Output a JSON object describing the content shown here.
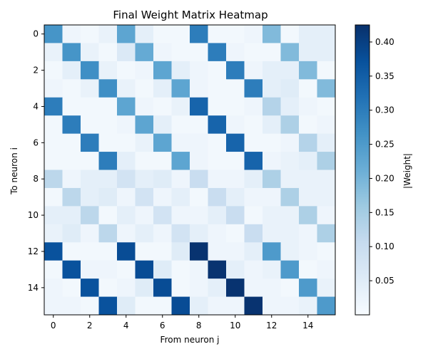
{
  "chart_data": {
    "type": "heatmap",
    "title": "Final Weight Matrix Heatmap",
    "xlabel": "From neuron j",
    "ylabel": "To neuron i",
    "colorbar_label": "|Weight|",
    "colormap": "Blues",
    "vmin": 0.0,
    "vmax": 0.425,
    "x_ticks": [
      0,
      2,
      4,
      6,
      8,
      10,
      12,
      14
    ],
    "y_ticks": [
      0,
      2,
      4,
      6,
      8,
      10,
      12,
      14
    ],
    "colorbar_ticks": [
      "0.05",
      "0.10",
      "0.15",
      "0.20",
      "0.25",
      "0.30",
      "0.35",
      "0.40"
    ],
    "colorbar_tick_values": [
      0.05,
      0.1,
      0.15,
      0.2,
      0.25,
      0.3,
      0.35,
      0.4
    ],
    "rows": 16,
    "cols": 16,
    "values": [
      [
        0.26,
        0.02,
        0.01,
        0.03,
        0.23,
        0.04,
        0.01,
        0.01,
        0.3,
        0.01,
        0.01,
        0.02,
        0.19,
        0.01,
        0.04,
        0.04
      ],
      [
        0.03,
        0.26,
        0.03,
        0.01,
        0.06,
        0.22,
        0.02,
        0.01,
        0.01,
        0.3,
        0.02,
        0.01,
        0.01,
        0.19,
        0.04,
        0.04
      ],
      [
        0.01,
        0.04,
        0.27,
        0.03,
        0.01,
        0.02,
        0.23,
        0.04,
        0.02,
        0.01,
        0.3,
        0.02,
        0.04,
        0.04,
        0.19,
        0.01
      ],
      [
        0.02,
        0.01,
        0.03,
        0.27,
        0.03,
        0.01,
        0.04,
        0.23,
        0.02,
        0.01,
        0.01,
        0.3,
        0.04,
        0.05,
        0.01,
        0.19
      ],
      [
        0.3,
        0.01,
        0.01,
        0.01,
        0.23,
        0.02,
        0.01,
        0.03,
        0.34,
        0.01,
        0.01,
        0.02,
        0.13,
        0.04,
        0.02,
        0.01
      ],
      [
        0.01,
        0.3,
        0.01,
        0.01,
        0.02,
        0.23,
        0.04,
        0.01,
        0.01,
        0.34,
        0.02,
        0.01,
        0.04,
        0.14,
        0.01,
        0.02
      ],
      [
        0.01,
        0.01,
        0.3,
        0.01,
        0.01,
        0.03,
        0.23,
        0.02,
        0.02,
        0.01,
        0.34,
        0.01,
        0.01,
        0.02,
        0.13,
        0.04
      ],
      [
        0.01,
        0.01,
        0.01,
        0.3,
        0.04,
        0.01,
        0.01,
        0.23,
        0.02,
        0.01,
        0.01,
        0.34,
        0.02,
        0.03,
        0.04,
        0.14
      ],
      [
        0.12,
        0.02,
        0.04,
        0.04,
        0.08,
        0.04,
        0.05,
        0.02,
        0.1,
        0.02,
        0.02,
        0.04,
        0.14,
        0.03,
        0.03,
        0.03
      ],
      [
        0.01,
        0.12,
        0.04,
        0.05,
        0.02,
        0.08,
        0.02,
        0.04,
        0.01,
        0.1,
        0.04,
        0.02,
        0.02,
        0.14,
        0.03,
        0.03
      ],
      [
        0.04,
        0.04,
        0.12,
        0.01,
        0.04,
        0.02,
        0.08,
        0.02,
        0.02,
        0.04,
        0.1,
        0.01,
        0.03,
        0.03,
        0.14,
        0.02
      ],
      [
        0.03,
        0.05,
        0.02,
        0.12,
        0.02,
        0.04,
        0.02,
        0.08,
        0.04,
        0.02,
        0.01,
        0.1,
        0.03,
        0.03,
        0.02,
        0.14
      ],
      [
        0.37,
        0.01,
        0.01,
        0.01,
        0.38,
        0.01,
        0.01,
        0.05,
        0.42,
        0.02,
        0.02,
        0.04,
        0.25,
        0.03,
        0.02,
        0.01
      ],
      [
        0.01,
        0.37,
        0.02,
        0.02,
        0.01,
        0.38,
        0.05,
        0.01,
        0.02,
        0.42,
        0.04,
        0.02,
        0.03,
        0.25,
        0.01,
        0.02
      ],
      [
        0.02,
        0.01,
        0.37,
        0.01,
        0.02,
        0.05,
        0.38,
        0.01,
        0.02,
        0.04,
        0.42,
        0.02,
        0.02,
        0.01,
        0.25,
        0.03
      ],
      [
        0.02,
        0.02,
        0.01,
        0.37,
        0.05,
        0.01,
        0.01,
        0.38,
        0.04,
        0.02,
        0.02,
        0.42,
        0.02,
        0.02,
        0.03,
        0.25
      ]
    ]
  }
}
